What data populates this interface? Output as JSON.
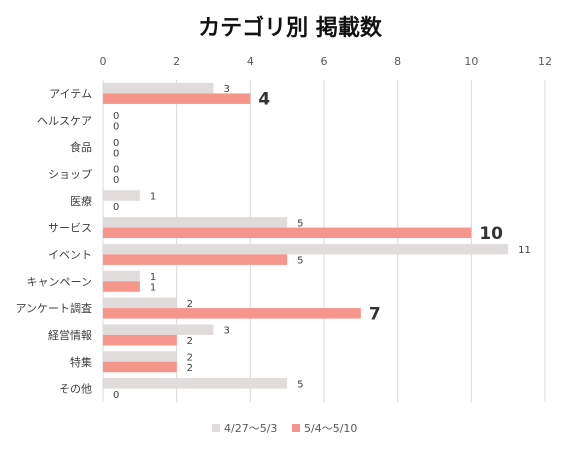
{
  "chart_data": {
    "type": "bar",
    "orientation": "horizontal",
    "title": "カテゴリ別 掲載数",
    "categories": [
      "アイテム",
      "ヘルスケア",
      "食品",
      "ショップ",
      "医療",
      "サービス",
      "イベント",
      "キャンペーン",
      "アンケート調査",
      "経営情報",
      "特集",
      "その他"
    ],
    "series": [
      {
        "name": "4/27～5/3",
        "values": [
          3,
          0,
          0,
          0,
          1,
          5,
          11,
          1,
          2,
          3,
          2,
          5
        ],
        "color": "#e1dcdc"
      },
      {
        "name": "5/4～5/10",
        "values": [
          4,
          0,
          0,
          0,
          0,
          10,
          5,
          1,
          7,
          2,
          2,
          0
        ],
        "color": "#f5958c"
      }
    ],
    "highlighted_labels": [
      {
        "series": 1,
        "index": 0
      },
      {
        "series": 1,
        "index": 5
      },
      {
        "series": 1,
        "index": 8
      }
    ],
    "xlim": [
      0,
      12
    ],
    "xticks": [
      0,
      2,
      4,
      6,
      8,
      10,
      12
    ],
    "x_axis_position": "top",
    "grid": true,
    "legend_position": "bottom"
  }
}
